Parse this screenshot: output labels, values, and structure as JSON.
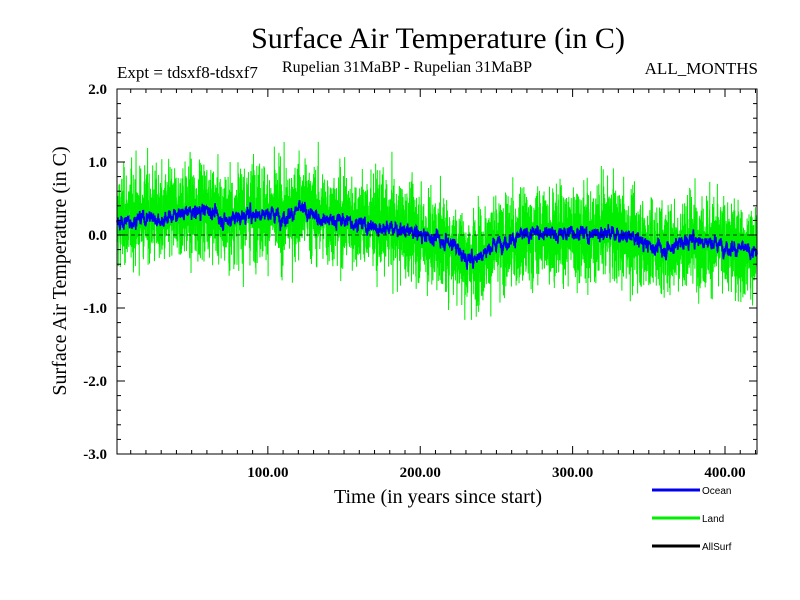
{
  "chart_data": {
    "type": "line",
    "title": "Surface Air Temperature (in C)",
    "subtitle_left": "Expt = tdsxf8-tdsxf7",
    "subtitle_mid": "Rupelian  31MaBP - Rupelian  31MaBP",
    "subtitle_right": "ALL_MONTHS",
    "xlabel": "Time (in years since start)",
    "ylabel": "Surface Air Temperature (in C)",
    "xlim": [
      1,
      421
    ],
    "ylim": [
      -3.0,
      2.0
    ],
    "x_ticks": [
      100,
      200,
      300,
      400
    ],
    "x_tick_labels": [
      "100.00",
      "200.00",
      "300.00",
      "400.00"
    ],
    "y_ticks": [
      -3.0,
      -2.0,
      -1.0,
      0.0,
      1.0,
      2.0
    ],
    "y_tick_labels": [
      "-3.0",
      "-2.0",
      "-1.0",
      "0.0",
      "1.0",
      "2.0"
    ],
    "reference_line": 0.0,
    "series": [
      {
        "name": "Land",
        "color": "#00ee00",
        "x": [
          1,
          11,
          21,
          31,
          41,
          51,
          61,
          71,
          81,
          91,
          101,
          111,
          121,
          131,
          141,
          151,
          161,
          171,
          181,
          191,
          201,
          211,
          221,
          231,
          241,
          251,
          261,
          271,
          281,
          291,
          301,
          311,
          321,
          331,
          341,
          351,
          361,
          371,
          381,
          391,
          401,
          411,
          421
        ],
        "values": [
          0.2,
          0.25,
          0.3,
          0.2,
          0.35,
          0.3,
          0.4,
          0.2,
          0.3,
          0.35,
          0.3,
          0.25,
          0.4,
          0.3,
          0.25,
          0.2,
          0.2,
          0.15,
          0.1,
          0.05,
          0.0,
          -0.1,
          -0.15,
          -0.35,
          -0.25,
          -0.15,
          -0.1,
          -0.05,
          0.05,
          0.0,
          0.05,
          0.0,
          0.1,
          0.0,
          -0.05,
          -0.15,
          -0.2,
          -0.1,
          -0.05,
          -0.1,
          -0.15,
          -0.2,
          -0.2
        ],
        "spread": 0.55
      },
      {
        "name": "Ocean",
        "color": "#0000ee",
        "x": [
          1,
          11,
          21,
          31,
          41,
          51,
          61,
          71,
          81,
          91,
          101,
          111,
          121,
          131,
          141,
          151,
          161,
          171,
          181,
          191,
          201,
          211,
          221,
          231,
          241,
          251,
          261,
          271,
          281,
          291,
          301,
          311,
          321,
          331,
          341,
          351,
          361,
          371,
          381,
          391,
          401,
          411,
          421
        ],
        "values": [
          0.15,
          0.2,
          0.25,
          0.2,
          0.3,
          0.3,
          0.35,
          0.2,
          0.25,
          0.3,
          0.3,
          0.25,
          0.35,
          0.25,
          0.2,
          0.2,
          0.15,
          0.1,
          0.1,
          0.05,
          0.0,
          -0.05,
          -0.1,
          -0.35,
          -0.25,
          -0.1,
          -0.05,
          0.0,
          0.05,
          0.0,
          0.05,
          0.0,
          0.05,
          0.0,
          -0.05,
          -0.15,
          -0.2,
          -0.1,
          -0.05,
          -0.1,
          -0.15,
          -0.2,
          -0.25
        ],
        "spread": 0.12
      },
      {
        "name": "AllSurf",
        "color": "#000000",
        "x": [],
        "values": [],
        "spread": 0
      }
    ],
    "legend": [
      "Ocean",
      "Land",
      "AllSurf"
    ],
    "legend_position": "bottom-right"
  }
}
